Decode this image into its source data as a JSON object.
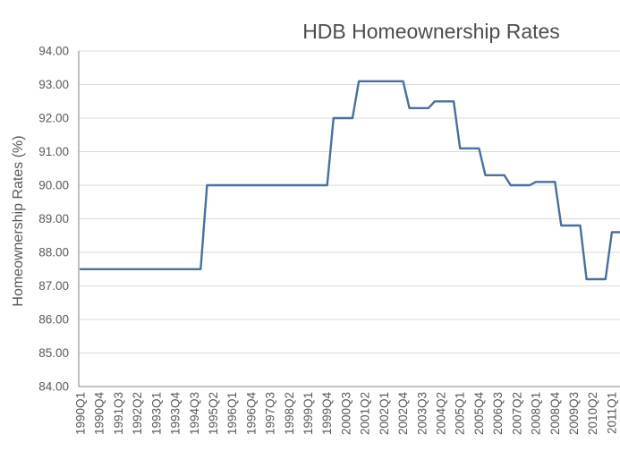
{
  "chart_data": {
    "type": "line",
    "title": "HDB Homeownership Rates",
    "xlabel": "",
    "ylabel": "Homeownership Rates (%)",
    "ylim": [
      84,
      94
    ],
    "y_tick_step": 1.0,
    "y_tick_labels": [
      "94.00",
      "93.00",
      "92.00",
      "91.00",
      "90.00",
      "89.00",
      "88.00",
      "87.00",
      "86.00",
      "85.00",
      "84.00"
    ],
    "x_tick_labels": [
      "1990Q1",
      "1990Q4",
      "1991Q3",
      "1992Q2",
      "1993Q1",
      "1993Q4",
      "1994Q3",
      "1995Q2",
      "1996Q1",
      "1996Q4",
      "1997Q3",
      "1998Q2",
      "1999Q1",
      "1999Q4",
      "2000Q3",
      "2001Q2",
      "2002Q1",
      "2002Q4",
      "2003Q3",
      "2004Q2",
      "2005Q1",
      "2005Q4",
      "2006Q3",
      "2007Q2",
      "2008Q1",
      "2008Q4",
      "2009Q3",
      "2010Q2",
      "2011Q1"
    ],
    "x_tick_interval_quarters": 3,
    "x_start_quarter": "1990Q1",
    "x_last_visible_label": "2011Q1",
    "grid": true,
    "legend": false,
    "quarters_per_annual_value": 4,
    "series": [
      {
        "name": "HDB homeownership rate (%)",
        "annual_values": [
          {
            "year": 1990,
            "value": 87.5
          },
          {
            "year": 1991,
            "value": 87.5
          },
          {
            "year": 1992,
            "value": 87.5
          },
          {
            "year": 1993,
            "value": 87.5
          },
          {
            "year": 1994,
            "value": 87.5
          },
          {
            "year": 1995,
            "value": 90.0
          },
          {
            "year": 1996,
            "value": 90.0
          },
          {
            "year": 1997,
            "value": 90.0
          },
          {
            "year": 1998,
            "value": 90.0
          },
          {
            "year": 1999,
            "value": 90.0
          },
          {
            "year": 2000,
            "value": 92.0
          },
          {
            "year": 2001,
            "value": 93.1
          },
          {
            "year": 2002,
            "value": 93.1
          },
          {
            "year": 2003,
            "value": 92.3
          },
          {
            "year": 2004,
            "value": 92.5
          },
          {
            "year": 2005,
            "value": 91.1
          },
          {
            "year": 2006,
            "value": 90.3
          },
          {
            "year": 2007,
            "value": 90.0
          },
          {
            "year": 2008,
            "value": 90.1
          },
          {
            "year": 2009,
            "value": 88.8
          },
          {
            "year": 2010,
            "value": 87.2
          },
          {
            "year": 2011,
            "value": 88.6
          }
        ]
      }
    ],
    "colors": {
      "line": "#4a6f9f",
      "grid": "#d9d9d9",
      "axis": "#9aa0a8",
      "text": "#595959",
      "title": "#4c4c4c",
      "background": "#ffffff"
    }
  }
}
